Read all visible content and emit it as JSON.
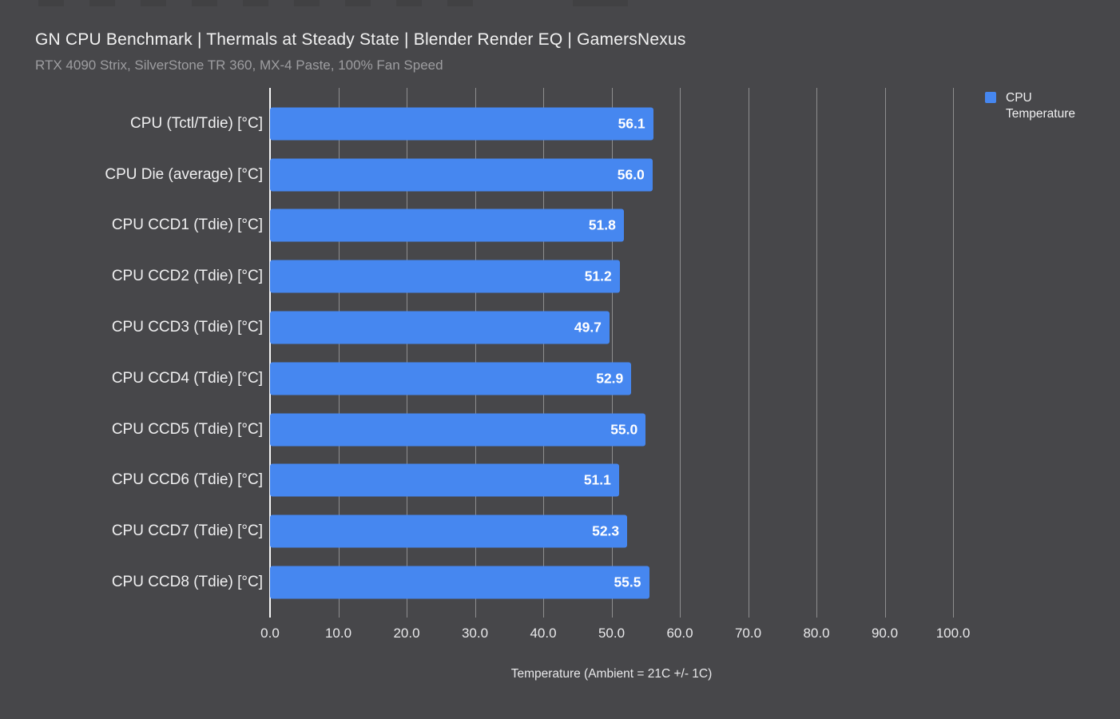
{
  "top_strip": {
    "height": 8,
    "blocks": [
      [
        48,
        32
      ],
      [
        112,
        32
      ],
      [
        176,
        32
      ],
      [
        240,
        32
      ],
      [
        304,
        32
      ],
      [
        368,
        32
      ],
      [
        432,
        32
      ],
      [
        496,
        32
      ],
      [
        560,
        32
      ],
      [
        717,
        69
      ]
    ]
  },
  "chart_data": {
    "type": "bar",
    "orientation": "horizontal",
    "title": "GN CPU Benchmark | Thermals at Steady State | Blender Render EQ | GamersNexus",
    "subtitle": "RTX 4090 Strix, SilverStone TR 360, MX-4 Paste, 100% Fan Speed",
    "categories": [
      "CPU (Tctl/Tdie) [°C]",
      "CPU Die (average) [°C]",
      "CPU CCD1 (Tdie) [°C]",
      "CPU CCD2 (Tdie) [°C]",
      "CPU CCD3 (Tdie) [°C]",
      "CPU CCD4 (Tdie) [°C]",
      "CPU CCD5 (Tdie) [°C]",
      "CPU CCD6 (Tdie) [°C]",
      "CPU CCD7 (Tdie) [°C]",
      "CPU CCD8 (Tdie) [°C]"
    ],
    "series": [
      {
        "name": "CPU Temperature",
        "color": "#4687f0",
        "values": [
          56.1,
          56.0,
          51.8,
          51.2,
          49.7,
          52.9,
          55.0,
          51.1,
          52.3,
          55.5
        ],
        "value_labels": [
          "56.1",
          "56.0",
          "51.8",
          "51.2",
          "49.7",
          "52.9",
          "55.0",
          "51.1",
          "52.3",
          "55.5"
        ]
      }
    ],
    "xlabel": "Temperature (Ambient = 21C +/- 1C)",
    "ylabel": "",
    "xlim": [
      0,
      100
    ],
    "x_ticks": [
      "0.0",
      "10.0",
      "20.0",
      "30.0",
      "40.0",
      "50.0",
      "60.0",
      "70.0",
      "80.0",
      "90.0",
      "100.0"
    ],
    "grid": true,
    "legend_position": "top-right"
  },
  "colors": {
    "background": "#47474a",
    "bar": "#4687f0",
    "gridline": "#a5a5a7",
    "zero_line": "#f5f5f5",
    "title": "#f2f2f2",
    "subtitle": "#9d9da0",
    "category_label": "#f0f0f1",
    "value_label": "#ffffff",
    "tick_label": "#e8e8ea",
    "strip_block": "#414143"
  }
}
